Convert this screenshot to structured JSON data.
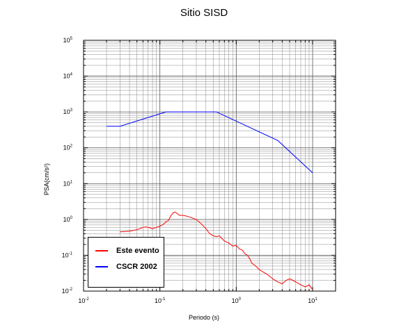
{
  "title": "Sitio SISD",
  "chart_data": {
    "type": "line",
    "xscale": "log",
    "yscale": "log",
    "xlim": [
      0.01,
      20
    ],
    "ylim": [
      0.01,
      100000
    ],
    "xlabel": "Periodo (s)",
    "ylabel": "PSA(cm/s²)",
    "xticks": [
      {
        "base": "10",
        "exp": "-2"
      },
      {
        "base": "10",
        "exp": "-1"
      },
      {
        "base": "10",
        "exp": "0"
      },
      {
        "base": "10",
        "exp": "1"
      }
    ],
    "yticks": [
      {
        "base": "10",
        "exp": "-2"
      },
      {
        "base": "10",
        "exp": "-1"
      },
      {
        "base": "10",
        "exp": "0"
      },
      {
        "base": "10",
        "exp": "1"
      },
      {
        "base": "10",
        "exp": "2"
      },
      {
        "base": "10",
        "exp": "3"
      },
      {
        "base": "10",
        "exp": "4"
      },
      {
        "base": "10",
        "exp": "5"
      }
    ],
    "grid": true,
    "legend_position": "bottom-left",
    "series": [
      {
        "name": "Este evento",
        "color": "#ff0000",
        "x": [
          0.03,
          0.04,
          0.05,
          0.055,
          0.06,
          0.065,
          0.07,
          0.075,
          0.08,
          0.09,
          0.1,
          0.11,
          0.12,
          0.13,
          0.14,
          0.15,
          0.16,
          0.18,
          0.2,
          0.22,
          0.25,
          0.28,
          0.3,
          0.35,
          0.4,
          0.45,
          0.5,
          0.55,
          0.6,
          0.7,
          0.8,
          0.9,
          1.0,
          1.1,
          1.2,
          1.3,
          1.4,
          1.5,
          1.6,
          1.7,
          1.8,
          2.0,
          2.2,
          2.5,
          2.8,
          3.0,
          3.5,
          4.0,
          4.5,
          5.0,
          5.5,
          6.0,
          7.0,
          8.0,
          9.0,
          10.0
        ],
        "y": [
          0.45,
          0.47,
          0.52,
          0.55,
          0.6,
          0.62,
          0.6,
          0.58,
          0.55,
          0.6,
          0.65,
          0.72,
          0.85,
          0.95,
          1.3,
          1.55,
          1.6,
          1.3,
          1.3,
          1.25,
          1.15,
          1.05,
          1.0,
          0.75,
          0.55,
          0.4,
          0.35,
          0.33,
          0.35,
          0.25,
          0.22,
          0.18,
          0.19,
          0.15,
          0.14,
          0.11,
          0.1,
          0.08,
          0.06,
          0.055,
          0.05,
          0.04,
          0.035,
          0.03,
          0.025,
          0.022,
          0.018,
          0.016,
          0.02,
          0.022,
          0.02,
          0.018,
          0.015,
          0.013,
          0.015,
          0.011
        ]
      },
      {
        "name": "CSCR 2002",
        "color": "#0000ff",
        "x": [
          0.02,
          0.03,
          0.12,
          0.55,
          3.5,
          10
        ],
        "y": [
          400,
          400,
          1000,
          1000,
          160,
          20
        ]
      }
    ]
  }
}
